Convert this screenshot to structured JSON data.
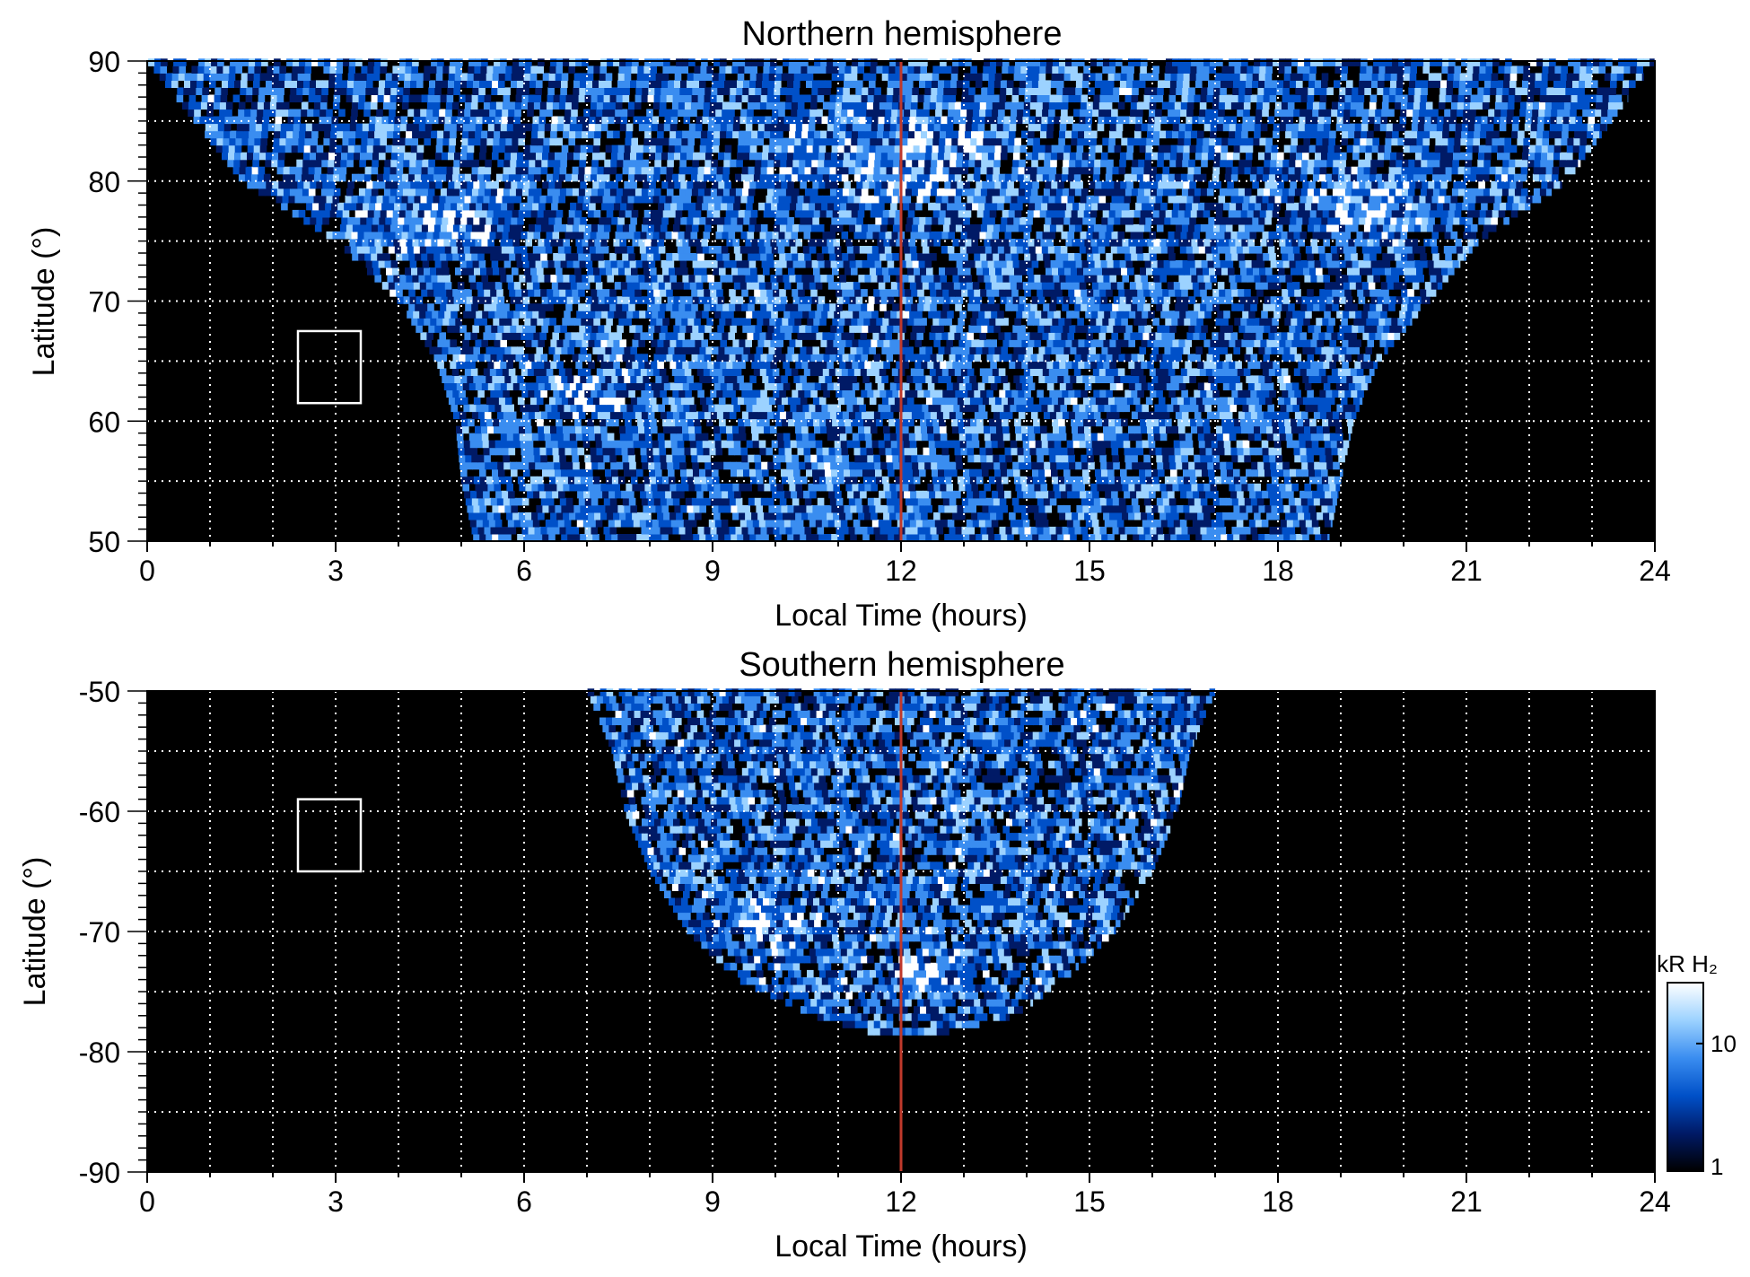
{
  "chart_data": [
    {
      "type": "heatmap",
      "title": "Northern hemisphere",
      "xlabel": "Local Time (hours)",
      "ylabel": "Latitude (°)",
      "xlim": [
        0,
        24
      ],
      "ylim": [
        50,
        90
      ],
      "xticks": [
        "0",
        "3",
        "6",
        "9",
        "12",
        "15",
        "18",
        "21",
        "24"
      ],
      "yticks": [
        "50",
        "60",
        "70",
        "80",
        "90"
      ],
      "grid": true,
      "marker_line": {
        "x": 12,
        "color": "#c0392b"
      },
      "box": {
        "x": [
          2.4,
          3.4
        ],
        "y": [
          61.5,
          67.5
        ]
      },
      "coverage": [
        {
          "lat": 50,
          "lt": [
            5.2,
            18.8
          ]
        },
        {
          "lat": 55,
          "lt": [
            5.0,
            19.0
          ]
        },
        {
          "lat": 60,
          "lt": [
            4.9,
            19.2
          ]
        },
        {
          "lat": 65,
          "lt": [
            4.6,
            19.6
          ]
        },
        {
          "lat": 70,
          "lt": [
            4.0,
            20.4
          ]
        },
        {
          "lat": 75,
          "lt": [
            3.0,
            21.2
          ]
        },
        {
          "lat": 80,
          "lt": [
            1.5,
            22.6
          ]
        },
        {
          "lat": 90,
          "lt": [
            0,
            24
          ]
        }
      ],
      "bright_patches": [
        {
          "lt": 4.5,
          "lat": 76.5,
          "r": 1.6
        },
        {
          "lt": 12,
          "lat": 82,
          "r": 2.5
        },
        {
          "lt": 19.5,
          "lat": 77.5,
          "r": 1.5
        },
        {
          "lt": 7,
          "lat": 62,
          "r": 1.0
        }
      ]
    },
    {
      "type": "heatmap",
      "title": "Southern hemisphere",
      "xlabel": "Local Time (hours)",
      "ylabel": "Latitude (°)",
      "xlim": [
        0,
        24
      ],
      "ylim": [
        -90,
        -50
      ],
      "xticks": [
        "0",
        "3",
        "6",
        "9",
        "12",
        "15",
        "18",
        "21",
        "24"
      ],
      "yticks": [
        "-90",
        "-80",
        "-70",
        "-60",
        "-50"
      ],
      "grid": true,
      "marker_line": {
        "x": 12,
        "color": "#c0392b"
      },
      "box": {
        "x": [
          2.4,
          3.4
        ],
        "y": [
          -65,
          -59
        ]
      },
      "coverage": [
        {
          "lat": -50,
          "lt": [
            7.0,
            17.0
          ]
        },
        {
          "lat": -55,
          "lt": [
            7.4,
            16.6
          ]
        },
        {
          "lat": -60,
          "lt": [
            7.6,
            16.4
          ]
        },
        {
          "lat": -65,
          "lt": [
            8.0,
            16.0
          ]
        },
        {
          "lat": -70,
          "lt": [
            8.6,
            15.4
          ]
        },
        {
          "lat": -74,
          "lt": [
            9.4,
            14.6
          ]
        },
        {
          "lat": -77,
          "lt": [
            10.6,
            13.8
          ]
        },
        {
          "lat": -78.5,
          "lt": [
            11.6,
            12.6
          ]
        }
      ],
      "bright_patches": [
        {
          "lt": 9.8,
          "lat": -69.5,
          "r": 1.1
        },
        {
          "lt": 12.4,
          "lat": -74,
          "r": 1.0
        }
      ]
    }
  ],
  "colorbar": {
    "label": "kR H₂",
    "scale": "log",
    "range": [
      1,
      30
    ],
    "ticks": [
      "1",
      "10"
    ],
    "colors": [
      "#000000",
      "#001a66",
      "#0050c8",
      "#3a8df0",
      "#9cd2ff",
      "#ffffff"
    ]
  }
}
